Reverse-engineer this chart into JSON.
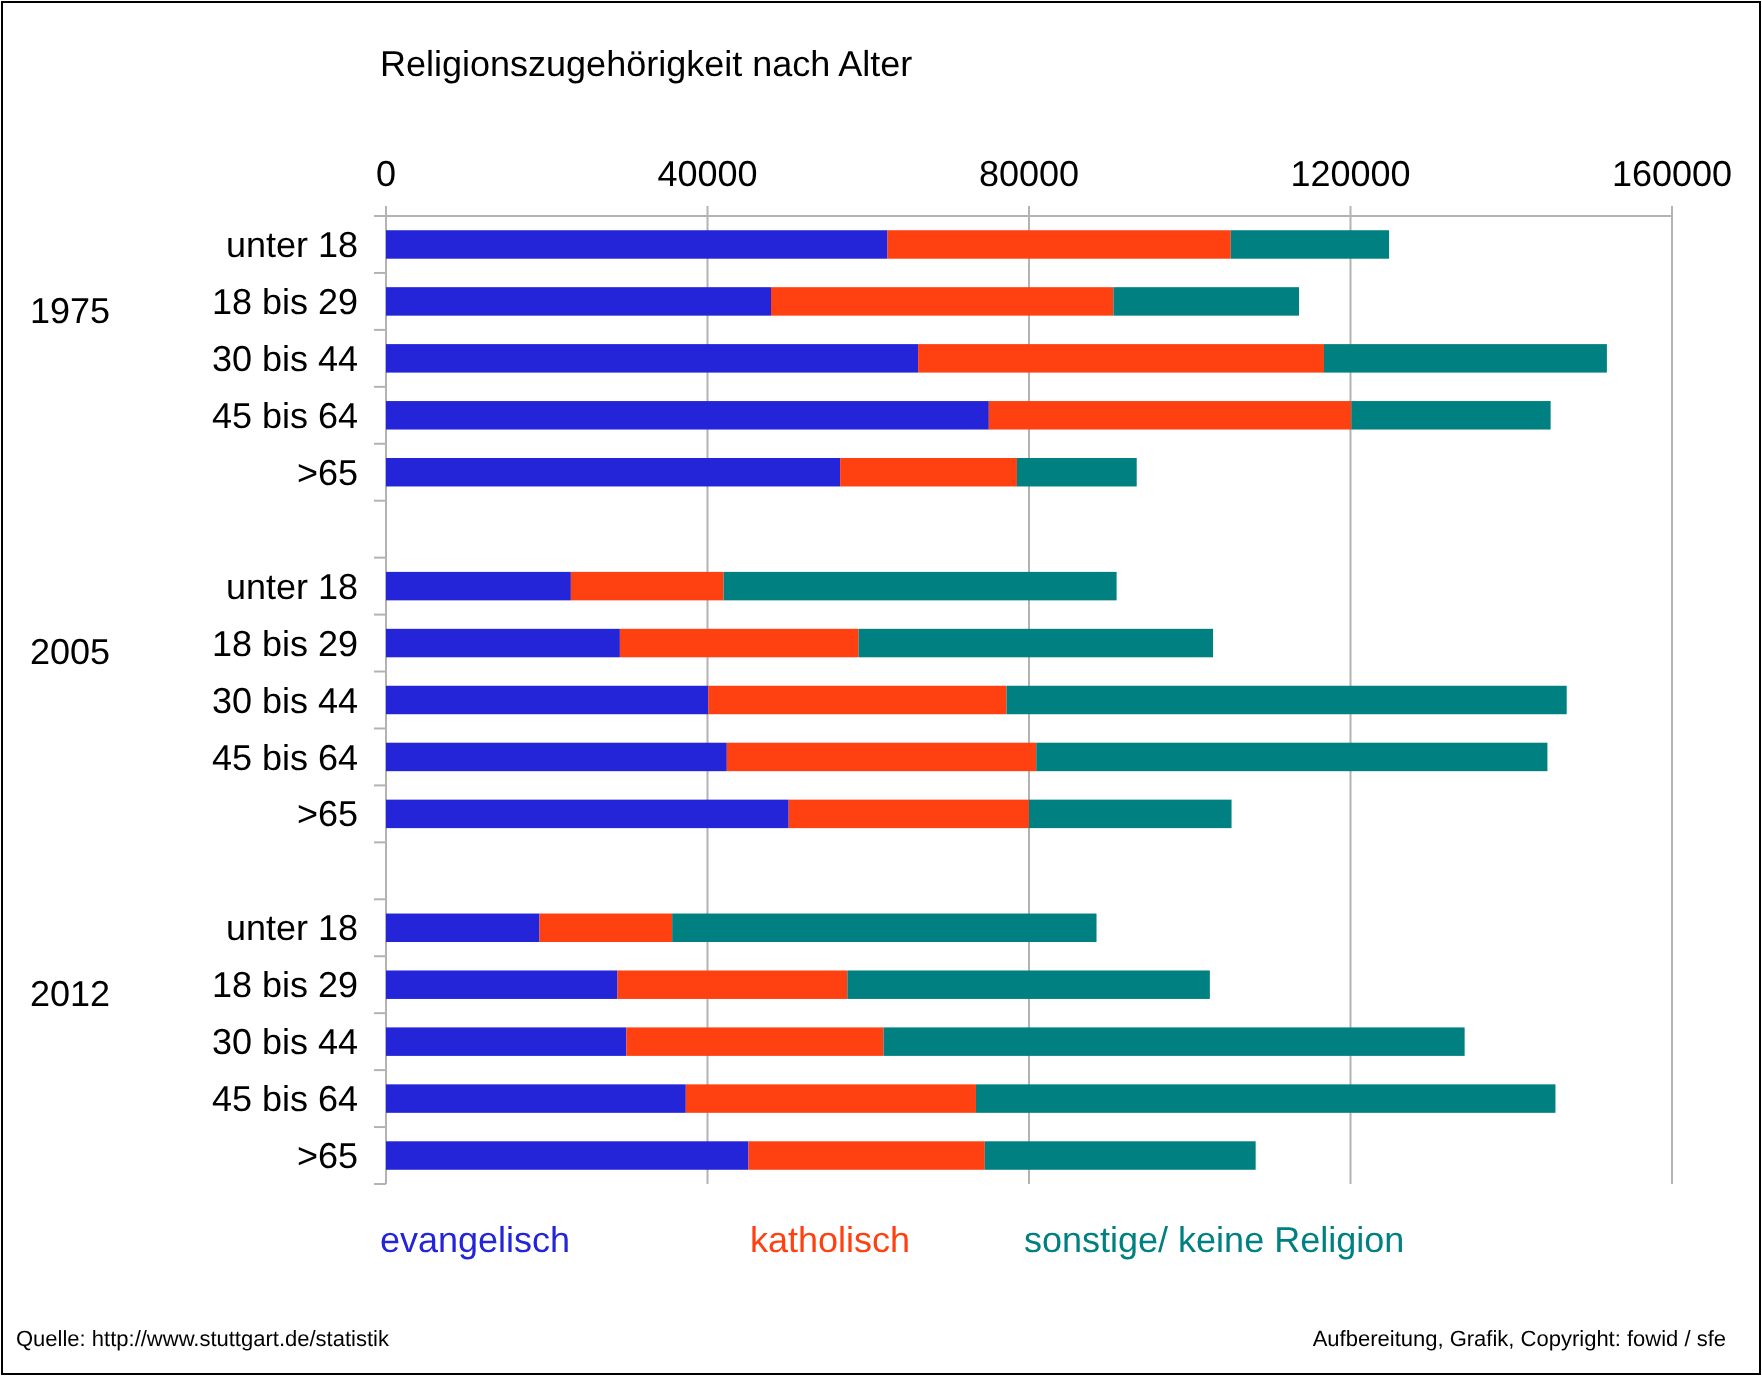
{
  "chart_data": {
    "type": "bar",
    "orientation": "horizontal",
    "stacked": true,
    "title": "Religionszugehörigkeit nach Alter",
    "categories": [
      "unter 18",
      "18 bis 29",
      "30 bis 44",
      "45 bis 64",
      ">65",
      null,
      "unter 18",
      "18 bis 29",
      "30 bis 44",
      "45 bis 64",
      ">65",
      null,
      "unter 18",
      "18 bis 29",
      "30 bis 44",
      "45 bis 64",
      ">65"
    ],
    "series": [
      {
        "name": "evangelisch",
        "color": "#2424d8",
        "values": [
          62400,
          47900,
          66200,
          75000,
          56500,
          null,
          23000,
          29100,
          40100,
          42400,
          50100,
          null,
          19100,
          28800,
          29900,
          37300,
          45100
        ]
      },
      {
        "name": "katholisch",
        "color": "#ff4010",
        "values": [
          42700,
          42600,
          50500,
          45100,
          22000,
          null,
          19000,
          29700,
          37100,
          38500,
          29900,
          null,
          16500,
          28600,
          32000,
          36100,
          29400
        ]
      },
      {
        "name": "sonstige/ keine Religion",
        "color": "#008080",
        "values": [
          19700,
          23100,
          35200,
          24800,
          14900,
          null,
          48900,
          44100,
          69700,
          63600,
          25200,
          null,
          52800,
          45100,
          72300,
          72100,
          33700
        ]
      }
    ],
    "xlim": [
      0,
      160000
    ],
    "xticks": [
      0,
      40000,
      80000,
      120000,
      160000
    ],
    "grid": "x",
    "legend": "bottom",
    "annotations": [
      "1975",
      "2005",
      "2012",
      "Quelle: http://www.stuttgart.de/statistik",
      "Aufbereitung, Grafik, Copyright: fowid / sfe"
    ]
  }
}
